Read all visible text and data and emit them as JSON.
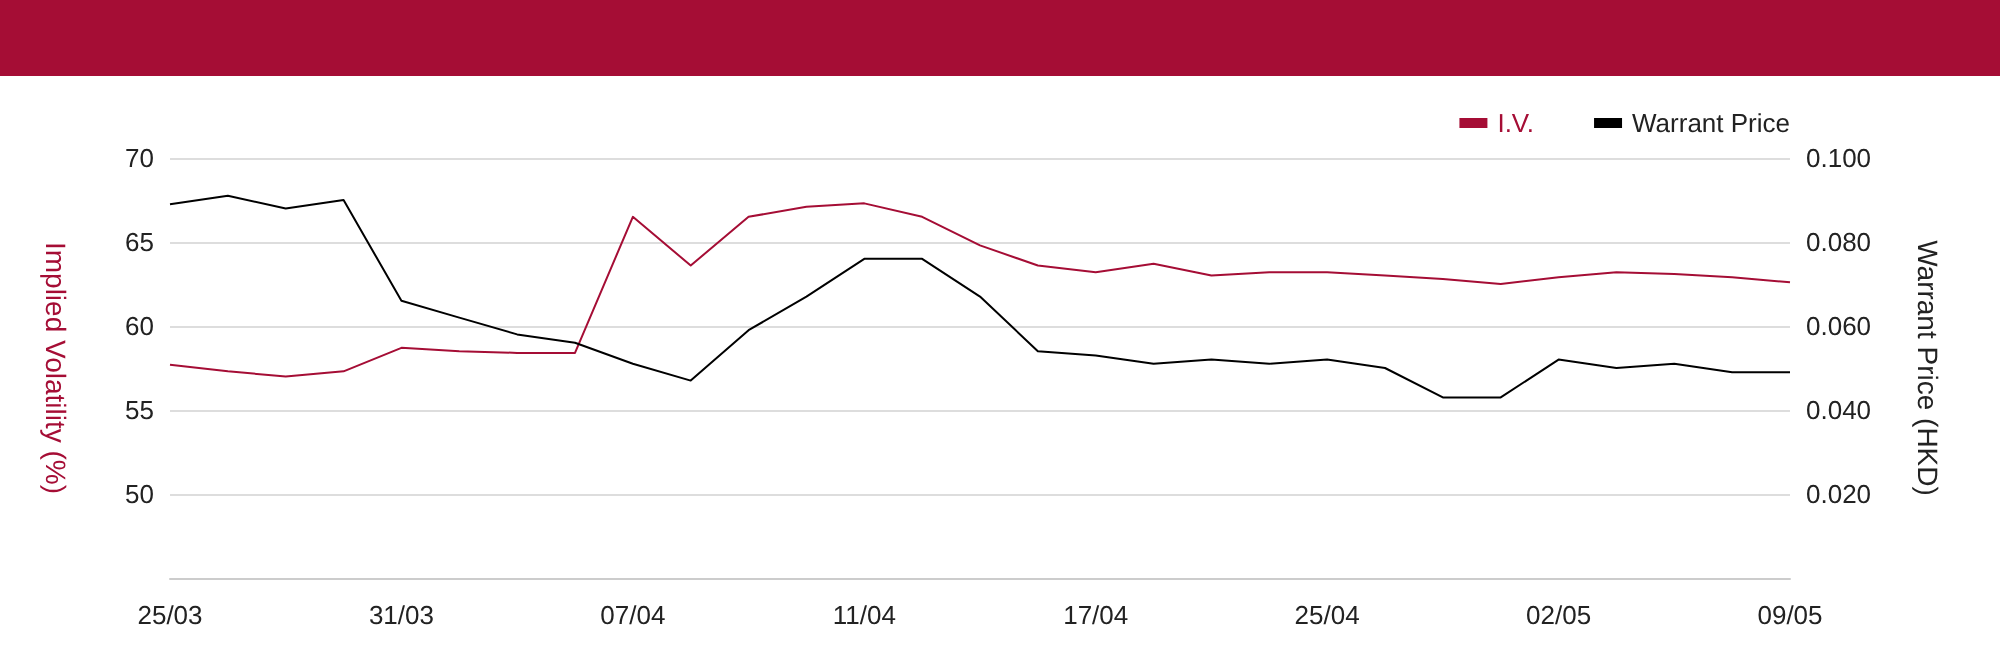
{
  "chart_data": {
    "type": "line",
    "ylabel": "Implied Volatility (%)",
    "y2label": "Warrant Price (HKD)",
    "categories": [
      "25/03",
      null,
      null,
      null,
      "31/03",
      null,
      null,
      null,
      "07/04",
      null,
      null,
      null,
      "11/04",
      null,
      null,
      null,
      "17/04",
      null,
      null,
      null,
      "25/04",
      null,
      null,
      null,
      "02/05",
      null,
      null,
      null,
      "09/05"
    ],
    "series": [
      {
        "name": "I.V.",
        "color": "#a50d35",
        "values": [
          57.7,
          57.3,
          57.0,
          57.3,
          58.7,
          58.5,
          58.4,
          58.4,
          66.5,
          63.6,
          66.5,
          67.1,
          67.3,
          66.5,
          64.8,
          63.6,
          63.2,
          63.7,
          63.0,
          63.2,
          63.2,
          63.0,
          62.8,
          62.5,
          62.9,
          63.2,
          63.1,
          62.9,
          62.6
        ]
      },
      {
        "name": "Warrant Price",
        "color": "#000000",
        "axis": "y2",
        "values": [
          0.089,
          0.091,
          0.088,
          0.09,
          0.066,
          0.062,
          0.058,
          0.056,
          0.051,
          0.047,
          0.059,
          0.067,
          0.076,
          0.076,
          0.067,
          0.054,
          0.053,
          0.051,
          0.052,
          0.051,
          0.052,
          0.05,
          0.043,
          0.043,
          0.052,
          0.05,
          0.051,
          0.049,
          0.049
        ]
      }
    ],
    "ylim": [
      45,
      70
    ],
    "yticks": [
      50,
      55,
      60,
      65,
      70
    ],
    "y2lim": [
      0,
      0.1
    ],
    "y2ticks": [
      {
        "value": 0.02,
        "label": "0.020"
      },
      {
        "value": 0.04,
        "label": "0.040"
      },
      {
        "value": 0.06,
        "label": "0.060"
      },
      {
        "value": 0.08,
        "label": "0.080"
      },
      {
        "value": 0.1,
        "label": "0.100"
      }
    ],
    "grid": "y",
    "legend": "top right",
    "marker": "none",
    "line_style": "solid"
  }
}
